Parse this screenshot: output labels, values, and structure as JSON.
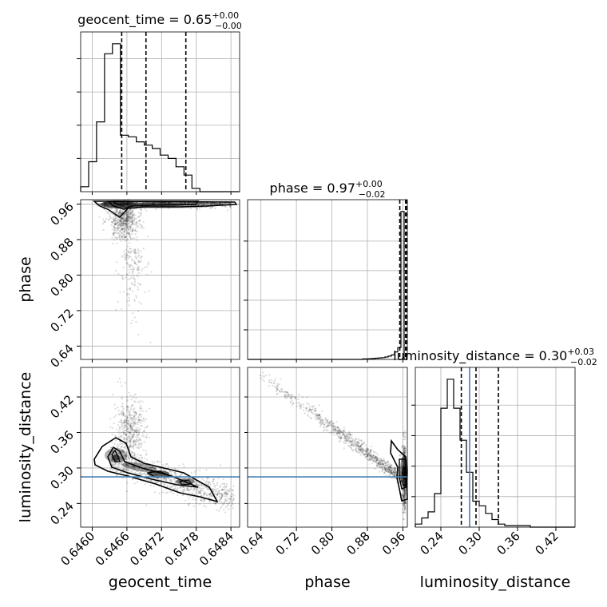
{
  "chart_data": {
    "type": "scatter",
    "kind": "corner-plot",
    "parameters": [
      "geocent_time",
      "phase",
      "luminosity_distance"
    ],
    "truth": {
      "luminosity_distance": 0.285
    },
    "truth_color": "#4682b4",
    "grid": true,
    "panels": {
      "geocent_time": {
        "title_name": "geocent_time",
        "title_value": "0.65",
        "title_plus": "+0.00",
        "title_minus": "−0.00",
        "xlim": [
          0.6458,
          0.64855
        ],
        "xticks": [
          "0.6460",
          "0.6466",
          "0.6472",
          "0.6478",
          "0.6484"
        ],
        "xtick_values": [
          0.646,
          0.6466,
          0.6472,
          0.6478,
          0.6484
        ],
        "quantiles": [
          0.64651,
          0.64693,
          0.64762
        ],
        "hist_edges_start": 0.6458,
        "hist_bin_width": 0.0001375,
        "hist_counts": [
          3,
          18,
          42,
          83,
          89,
          34,
          33,
          30,
          28,
          26,
          22,
          20,
          15,
          10,
          2,
          0
        ]
      },
      "phase": {
        "title_name": "phase",
        "title_value": "0.97",
        "title_plus": "+0.00",
        "title_minus": "−0.02",
        "xlim": [
          0.61,
          0.97
        ],
        "xticks": [
          "0.64",
          "0.72",
          "0.80",
          "0.88",
          "0.96"
        ],
        "xtick_values": [
          0.64,
          0.72,
          0.8,
          0.88,
          0.96
        ],
        "yticks": [
          "0.64",
          "0.72",
          "0.80",
          "0.88",
          "0.96"
        ],
        "quantiles": [
          0.953,
          0.966,
          0.969
        ],
        "hist_edges_start": 0.61,
        "hist_bin_width": 0.0072,
        "hist_counts": [
          0,
          0,
          0,
          0,
          0,
          0,
          0,
          0,
          0,
          0,
          0,
          0,
          0,
          0,
          0,
          0,
          0,
          0,
          0,
          0,
          0,
          0,
          0,
          0,
          0,
          0,
          0,
          0,
          0,
          0,
          0,
          0,
          0,
          0,
          0,
          0,
          0.3,
          0.4,
          0.5,
          0.6,
          0.8,
          1,
          1.2,
          1.6,
          2.2,
          3,
          5,
          8,
          100,
          0
        ]
      },
      "luminosity_distance": {
        "title_name": "luminosity_distance",
        "title_value": "0.30",
        "title_plus": "+0.03",
        "title_minus": "−0.02",
        "xlim": [
          0.2,
          0.45
        ],
        "ylim": [
          0.2,
          0.47
        ],
        "xticks": [
          "0.24",
          "0.30",
          "0.36",
          "0.42"
        ],
        "xtick_values": [
          0.24,
          0.3,
          0.36,
          0.42
        ],
        "yticks": [
          "0.24",
          "0.30",
          "0.36",
          "0.42"
        ],
        "quantiles": [
          0.272,
          0.295,
          0.33
        ],
        "hist_edges_start": 0.2,
        "hist_bin_width": 0.01,
        "hist_counts": [
          2,
          6,
          10,
          22,
          78,
          97,
          78,
          57,
          36,
          17,
          14,
          9,
          5,
          2,
          1,
          1,
          1,
          1,
          0,
          0,
          0,
          0,
          0,
          0,
          0
        ]
      }
    },
    "axis_labels": {
      "x": [
        "geocent_time",
        "phase",
        "luminosity_distance"
      ],
      "y": [
        "phase",
        "luminosity_distance"
      ]
    }
  }
}
